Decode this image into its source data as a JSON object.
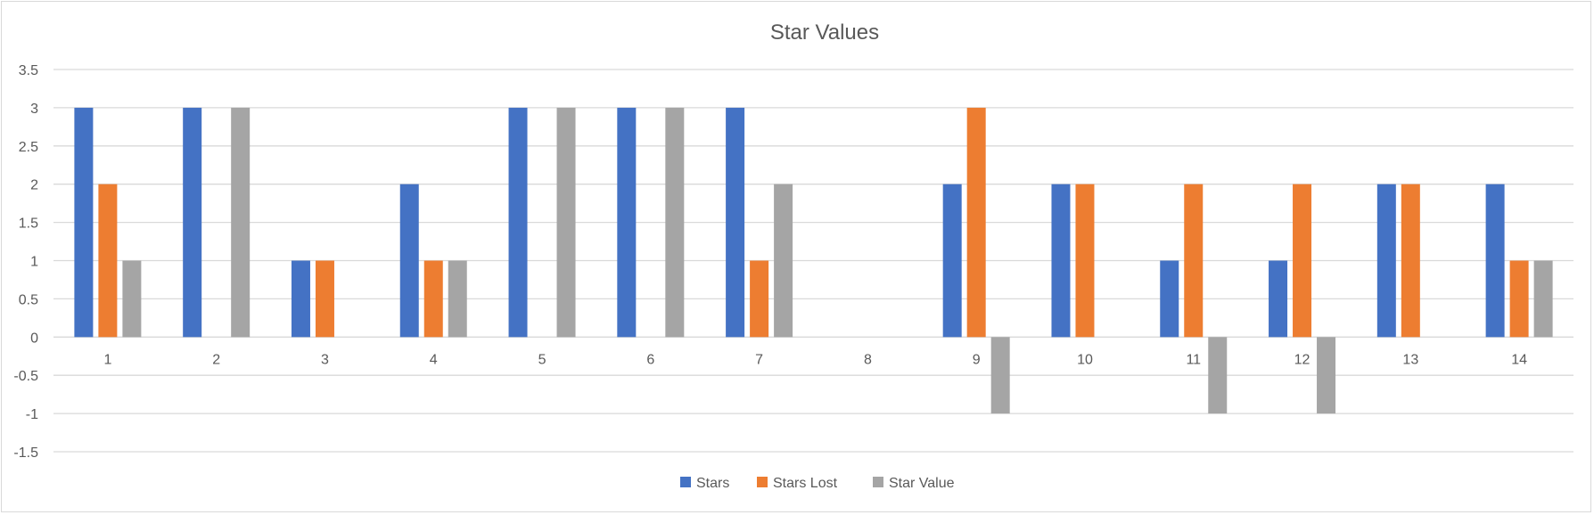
{
  "chart_data": {
    "type": "bar",
    "title": "Star Values",
    "xlabel": "",
    "ylabel": "",
    "categories": [
      "1",
      "2",
      "3",
      "4",
      "5",
      "6",
      "7",
      "8",
      "9",
      "10",
      "11",
      "12",
      "13",
      "14"
    ],
    "series": [
      {
        "name": "Stars",
        "color": "#4472c4",
        "values": [
          3,
          3,
          1,
          2,
          3,
          3,
          3,
          0,
          2,
          2,
          1,
          1,
          2,
          2
        ]
      },
      {
        "name": "Stars Lost",
        "color": "#ed7d31",
        "values": [
          2,
          0,
          1,
          1,
          0,
          0,
          1,
          0,
          3,
          2,
          2,
          2,
          2,
          1
        ]
      },
      {
        "name": "Star Value",
        "color": "#a5a5a5",
        "values": [
          1,
          3,
          0,
          1,
          3,
          3,
          2,
          0,
          -1,
          0,
          -1,
          -1,
          0,
          1
        ]
      }
    ],
    "ylim": [
      -1.5,
      3.5
    ],
    "yticks": [
      "3.5",
      "3",
      "2.5",
      "2",
      "1.5",
      "1",
      "0.5",
      "0",
      "-0.5",
      "-1",
      "-1.5"
    ],
    "grid": true,
    "legend_position": "bottom"
  }
}
